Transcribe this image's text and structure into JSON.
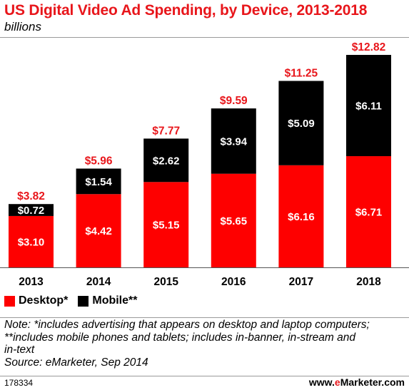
{
  "header": {
    "title": "US Digital Video Ad Spending, by Device, 2013-2018",
    "subtitle": "billions"
  },
  "colors": {
    "desktop": "#fe0000",
    "mobile": "#000000",
    "total_label": "#e8161b",
    "segment_label": "#ffffff"
  },
  "legend": {
    "items": [
      {
        "label": "Desktop*",
        "color": "#fe0000"
      },
      {
        "label": "Mobile**",
        "color": "#000000"
      }
    ]
  },
  "notes": {
    "line1": "Note: *includes advertising that appears on desktop and laptop computers;",
    "line2": "**includes mobile phones and tablets; includes in-banner, in-stream and",
    "line3": "in-text",
    "source": "Source: eMarketer, Sep 2014"
  },
  "footer": {
    "chart_id": "178334",
    "brand_prefix": "www.",
    "brand_accent": "e",
    "brand_suffix": "Marketer.com"
  },
  "chart_data": {
    "type": "bar",
    "stacked": true,
    "categories": [
      "2013",
      "2014",
      "2015",
      "2016",
      "2017",
      "2018"
    ],
    "series": [
      {
        "name": "Desktop*",
        "values": [
          3.1,
          4.42,
          5.15,
          5.65,
          6.16,
          6.71
        ],
        "labels": [
          "$3.10",
          "$4.42",
          "$5.15",
          "$5.65",
          "$6.16",
          "$6.71"
        ]
      },
      {
        "name": "Mobile**",
        "values": [
          0.72,
          1.54,
          2.62,
          3.94,
          5.09,
          6.11
        ],
        "labels": [
          "$0.72",
          "$1.54",
          "$2.62",
          "$3.94",
          "$5.09",
          "$6.11"
        ]
      }
    ],
    "totals": [
      3.82,
      5.96,
      7.77,
      9.59,
      11.25,
      12.82
    ],
    "total_labels": [
      "$3.82",
      "$5.96",
      "$7.77",
      "$9.59",
      "$11.25",
      "$12.82"
    ],
    "title": "US Digital Video Ad Spending, by Device, 2013-2018",
    "subtitle": "billions",
    "xlabel": "",
    "ylabel": "",
    "ylim": [
      0,
      12.82
    ],
    "grid": false,
    "legend_position": "bottom-left"
  }
}
